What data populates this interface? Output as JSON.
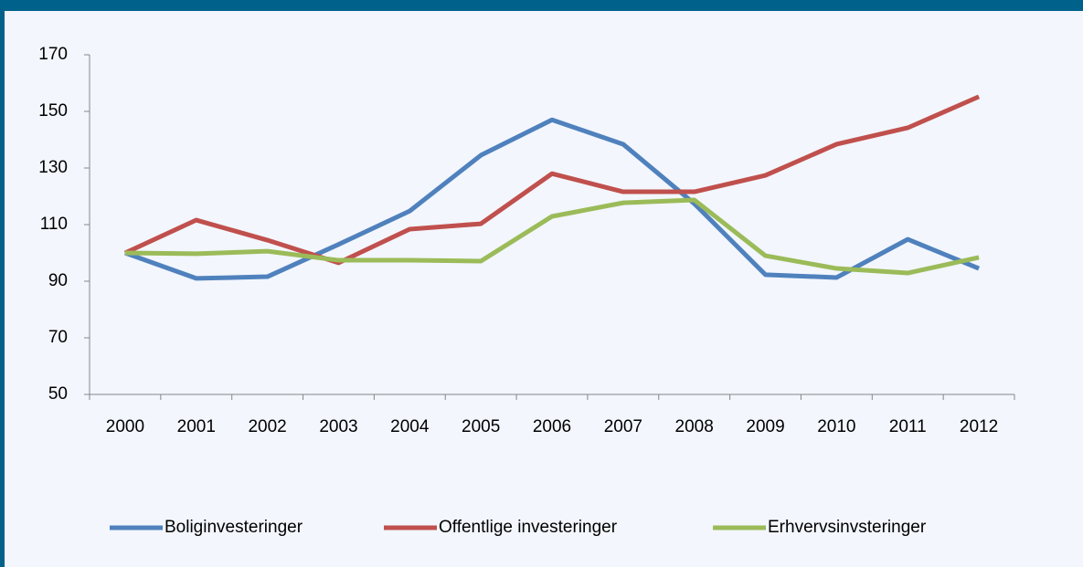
{
  "chart_data": {
    "type": "line",
    "categories": [
      "2000",
      "2001",
      "2002",
      "2003",
      "2004",
      "2005",
      "2006",
      "2007",
      "2008",
      "2009",
      "2010",
      "2011",
      "2012"
    ],
    "series": [
      {
        "name": "Boliginvesteringer",
        "color": "#4f81bd",
        "values": [
          100,
          91,
          91.6,
          103,
          114.8,
          134.5,
          147,
          138.4,
          117.4,
          92.3,
          91.3,
          104.8,
          94.5
        ]
      },
      {
        "name": "Offentlige investeringer",
        "color": "#c0504d",
        "values": [
          100,
          111.6,
          104.5,
          96.5,
          108.4,
          110.3,
          128,
          121.6,
          121.6,
          127.4,
          138.4,
          144.2,
          155.2
        ]
      },
      {
        "name": "Erhvervsinvsteringer",
        "color": "#9bbb59",
        "values": [
          100,
          99.7,
          100.6,
          97.4,
          97.4,
          97.1,
          112.9,
          117.7,
          118.7,
          99,
          94.5,
          92.9,
          98.4
        ]
      }
    ],
    "ylim": [
      50,
      170
    ],
    "yticks": [
      50,
      70,
      90,
      110,
      130,
      150,
      170
    ],
    "grid": false,
    "legend": "bottom"
  }
}
